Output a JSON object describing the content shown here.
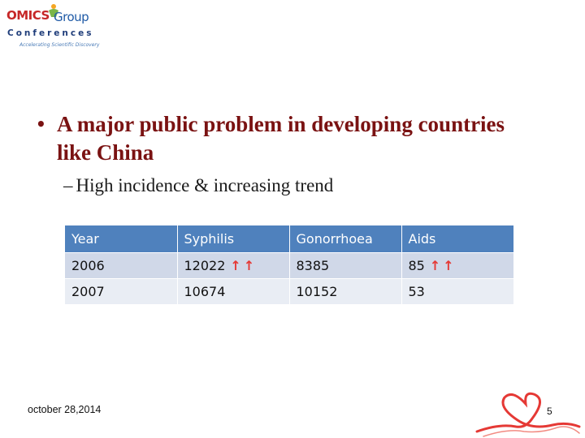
{
  "logo": {
    "brand_part1": "OMICS",
    "brand_part2": "Group",
    "subtitle": "Conferences",
    "tagline": "Accelerating Scientific Discovery"
  },
  "slide": {
    "bullet_main": "A major public problem in developing countries like China",
    "bullet_sub": "High incidence & increasing trend"
  },
  "table": {
    "headers": [
      "Year",
      "Syphilis",
      "Gonorrhoea",
      "Aids"
    ],
    "rows": [
      [
        "2006",
        "12022",
        "8385",
        "85"
      ],
      [
        "2007",
        "10674",
        "10152",
        "53"
      ]
    ],
    "arrow_symbol": "↑↑"
  },
  "footer": {
    "date": "october 28,2014",
    "page_number": "5"
  },
  "colors": {
    "title_color": "#7a1212",
    "header_bg": "#4f81bd",
    "row_dark": "#d0d8e8",
    "row_light": "#e9edf4",
    "arrow_color": "#e53935"
  }
}
